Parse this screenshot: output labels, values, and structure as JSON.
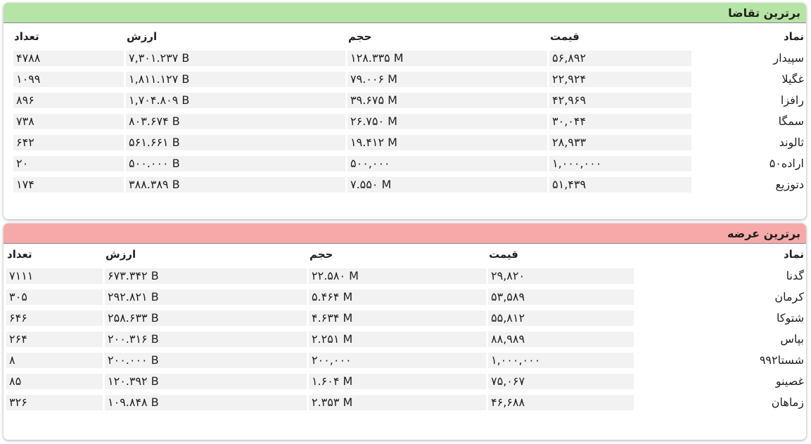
{
  "top_demand": {
    "title": "برترین تقاضا",
    "headers": {
      "symbol": "نماد",
      "price": "قیمت",
      "volume": "حجم",
      "value": "ارزش",
      "count": "تعداد"
    },
    "rows": [
      {
        "symbol": "سپیدار",
        "price": "۵۶,۸۹۲",
        "volume": "۱۲۸.۳۳۵ M",
        "value": "۷,۳۰۱.۲۳۷ B",
        "count": "۴۷۸۸"
      },
      {
        "symbol": "غگیلا",
        "price": "۲۲,۹۲۴",
        "volume": "۷۹.۰۰۶ M",
        "value": "۱,۸۱۱.۱۲۷ B",
        "count": "۱۰۹۹"
      },
      {
        "symbol": "رافزا",
        "price": "۴۲,۹۶۹",
        "volume": "۳۹.۶۷۵ M",
        "value": "۱,۷۰۴.۸۰۹ B",
        "count": "۸۹۶"
      },
      {
        "symbol": "سمگا",
        "price": "۳۰,۰۴۴",
        "volume": "۲۶.۷۵۰ M",
        "value": "۸۰۳.۶۷۴ B",
        "count": "۷۳۸"
      },
      {
        "symbol": "ثالوند",
        "price": "۲۸,۹۳۳",
        "volume": "۱۹.۴۱۲ M",
        "value": "۵۶۱.۶۶۱ B",
        "count": "۶۴۲"
      },
      {
        "symbol": "اراده۵۰",
        "price": "۱,۰۰۰,۰۰۰",
        "volume": "۵۰۰,۰۰۰",
        "value": "۵۰۰.۰۰۰ B",
        "count": "۲۰"
      },
      {
        "symbol": "دتوزیع",
        "price": "۵۱,۴۳۹",
        "volume": "۷.۵۵۰ M",
        "value": "۳۸۸.۳۸۹ B",
        "count": "۱۷۴"
      }
    ]
  },
  "top_supply": {
    "title": "برترین عرضه",
    "headers": {
      "symbol": "نماد",
      "price": "قیمت",
      "volume": "حجم",
      "value": "ارزش",
      "count": "تعداد"
    },
    "rows": [
      {
        "symbol": "گدنا",
        "price": "۲۹,۸۲۰",
        "volume": "۲۲.۵۸۰ M",
        "value": "۶۷۳.۳۴۲ B",
        "count": "۷۱۱۱"
      },
      {
        "symbol": "کرمان",
        "price": "۵۳,۵۸۹",
        "volume": "۵.۴۶۴ M",
        "value": "۲۹۲.۸۲۱ B",
        "count": "۳۰۵"
      },
      {
        "symbol": "شتوکا",
        "price": "۵۵,۸۱۲",
        "volume": "۴.۶۳۴ M",
        "value": "۲۵۸.۶۳۳ B",
        "count": "۶۴۶"
      },
      {
        "symbol": "بپاس",
        "price": "۸۸,۹۸۹",
        "volume": "۲.۲۵۱ M",
        "value": "۲۰۰.۳۱۶ B",
        "count": "۲۶۴"
      },
      {
        "symbol": "شستا۹۹۲",
        "price": "۱,۰۰۰,۰۰۰",
        "volume": "۲۰۰,۰۰۰",
        "value": "۲۰۰.۰۰۰ B",
        "count": "۸"
      },
      {
        "symbol": "غصینو",
        "price": "۷۵,۰۶۷",
        "volume": "۱.۶۰۴ M",
        "value": "۱۲۰.۳۹۲ B",
        "count": "۸۵"
      },
      {
        "symbol": "زماهان",
        "price": "۴۶,۶۸۸",
        "volume": "۲.۳۵۳ M",
        "value": "۱۰۹.۸۴۸ B",
        "count": "۳۲۶"
      }
    ]
  }
}
